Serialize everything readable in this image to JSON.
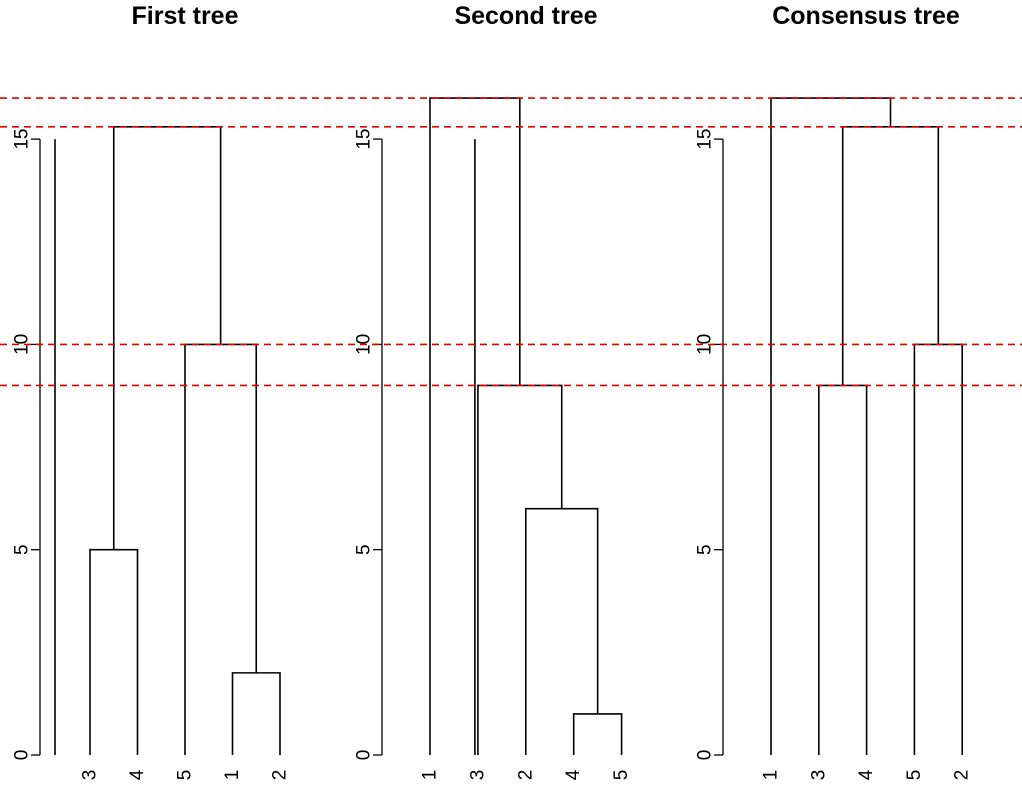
{
  "chart_data": [
    {
      "type": "dendrogram",
      "title": "First tree",
      "ylim": [
        0,
        15
      ],
      "yticks": [
        0,
        5,
        10,
        15
      ],
      "ytick_labels": [
        "0",
        "5",
        "10",
        "15"
      ],
      "leaf_order": [
        "3",
        "4",
        "5",
        "1",
        "2"
      ],
      "merges": [
        {
          "left": "1",
          "right": "2",
          "height": 2
        },
        {
          "left": "3",
          "right": "4",
          "height": 5
        },
        {
          "left": "5",
          "right": "1,2",
          "height": 10
        },
        {
          "left": "3,4",
          "right": "5,1,2",
          "height": 15.3
        }
      ],
      "extra_lines": [
        {
          "height": 15
        }
      ]
    },
    {
      "type": "dendrogram",
      "title": "Second tree",
      "ylim": [
        0,
        15
      ],
      "yticks": [
        0,
        5,
        10,
        15
      ],
      "ytick_labels": [
        "0",
        "5",
        "10",
        "15"
      ],
      "leaf_order": [
        "1",
        "3",
        "2",
        "4",
        "5"
      ],
      "merges": [
        {
          "left": "4",
          "right": "5",
          "height": 1
        },
        {
          "left": "2",
          "right": "4,5",
          "height": 6
        },
        {
          "left": "3",
          "right": "2,4,5",
          "height": 9
        },
        {
          "left": "1",
          "right": "3,2,4,5",
          "height": 16
        }
      ],
      "extra_lines": [
        {
          "height": 15
        }
      ]
    },
    {
      "type": "dendrogram",
      "title": "Consensus tree",
      "ylim": [
        0,
        15
      ],
      "yticks": [
        0,
        5,
        10,
        15
      ],
      "ytick_labels": [
        "0",
        "5",
        "10",
        "15"
      ],
      "leaf_order": [
        "1",
        "3",
        "4",
        "5",
        "2"
      ],
      "merges": [
        {
          "left": "3",
          "right": "4",
          "height": 9
        },
        {
          "left": "5",
          "right": "2",
          "height": 10
        },
        {
          "left": "3,4",
          "right": "5,2",
          "height": 15.3
        },
        {
          "left": "1",
          "right": "3,4,5,2",
          "height": 16
        }
      ],
      "extra_lines": []
    }
  ],
  "reference_lines": {
    "heights": [
      16,
      15.3,
      10,
      9
    ],
    "color": "#e00000",
    "style": "dashed"
  },
  "colors": {
    "tree": "#000000",
    "axis": "#000000",
    "background": "#ffffff"
  }
}
